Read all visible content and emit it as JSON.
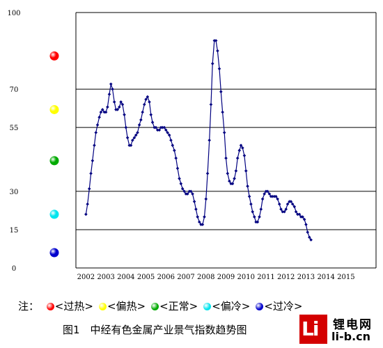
{
  "chart_data": {
    "type": "line",
    "title": "图1　中经有色金属产业景气指数趋势图",
    "xlabel": "",
    "ylabel": "",
    "ylim": [
      0,
      100
    ],
    "yticks": [
      0,
      15,
      30,
      55,
      70,
      100
    ],
    "x_tick_labels": [
      "2002",
      "2003",
      "2004",
      "2005",
      "2006",
      "2007",
      "2008",
      "2009",
      "2010",
      "2011",
      "2012",
      "2013",
      "2014",
      "2015"
    ],
    "x_range": [
      2001.5,
      2016.5
    ],
    "grid": "horizontal",
    "line_color": "#000080",
    "series": [
      {
        "values": [
          [
            2002.0,
            21
          ],
          [
            2002.08,
            25
          ],
          [
            2002.17,
            31
          ],
          [
            2002.25,
            37
          ],
          [
            2002.33,
            42
          ],
          [
            2002.42,
            48
          ],
          [
            2002.5,
            53
          ],
          [
            2002.58,
            56
          ],
          [
            2002.67,
            59
          ],
          [
            2002.75,
            61
          ],
          [
            2002.83,
            62
          ],
          [
            2002.92,
            61
          ],
          [
            2003.0,
            61
          ],
          [
            2003.08,
            63
          ],
          [
            2003.17,
            68
          ],
          [
            2003.25,
            72
          ],
          [
            2003.33,
            70
          ],
          [
            2003.42,
            65
          ],
          [
            2003.5,
            62
          ],
          [
            2003.58,
            62
          ],
          [
            2003.67,
            63
          ],
          [
            2003.75,
            65
          ],
          [
            2003.83,
            64
          ],
          [
            2003.92,
            60
          ],
          [
            2004.0,
            55
          ],
          [
            2004.08,
            51
          ],
          [
            2004.17,
            48
          ],
          [
            2004.25,
            48
          ],
          [
            2004.33,
            50
          ],
          [
            2004.42,
            51
          ],
          [
            2004.5,
            52
          ],
          [
            2004.58,
            53
          ],
          [
            2004.67,
            56
          ],
          [
            2004.75,
            58
          ],
          [
            2004.83,
            61
          ],
          [
            2004.92,
            64
          ],
          [
            2005.0,
            66
          ],
          [
            2005.08,
            67
          ],
          [
            2005.17,
            65
          ],
          [
            2005.25,
            60
          ],
          [
            2005.33,
            57
          ],
          [
            2005.42,
            55
          ],
          [
            2005.5,
            55
          ],
          [
            2005.58,
            54
          ],
          [
            2005.67,
            54
          ],
          [
            2005.75,
            55
          ],
          [
            2005.83,
            55
          ],
          [
            2005.92,
            55
          ],
          [
            2006.0,
            54
          ],
          [
            2006.08,
            53
          ],
          [
            2006.17,
            52
          ],
          [
            2006.25,
            50
          ],
          [
            2006.33,
            48
          ],
          [
            2006.42,
            46
          ],
          [
            2006.5,
            43
          ],
          [
            2006.58,
            39
          ],
          [
            2006.67,
            35
          ],
          [
            2006.75,
            33
          ],
          [
            2006.83,
            31
          ],
          [
            2006.92,
            30
          ],
          [
            2007.0,
            29
          ],
          [
            2007.08,
            29
          ],
          [
            2007.17,
            30
          ],
          [
            2007.25,
            30
          ],
          [
            2007.33,
            29
          ],
          [
            2007.42,
            26
          ],
          [
            2007.5,
            23
          ],
          [
            2007.58,
            20
          ],
          [
            2007.67,
            18
          ],
          [
            2007.75,
            17
          ],
          [
            2007.83,
            17
          ],
          [
            2007.92,
            20
          ],
          [
            2008.0,
            27
          ],
          [
            2008.08,
            37
          ],
          [
            2008.17,
            50
          ],
          [
            2008.25,
            64
          ],
          [
            2008.33,
            80
          ],
          [
            2008.42,
            89
          ],
          [
            2008.5,
            89
          ],
          [
            2008.58,
            85
          ],
          [
            2008.67,
            78
          ],
          [
            2008.75,
            69
          ],
          [
            2008.83,
            61
          ],
          [
            2008.92,
            53
          ],
          [
            2009.0,
            43
          ],
          [
            2009.08,
            37
          ],
          [
            2009.17,
            34
          ],
          [
            2009.25,
            33
          ],
          [
            2009.33,
            33
          ],
          [
            2009.42,
            35
          ],
          [
            2009.5,
            38
          ],
          [
            2009.58,
            43
          ],
          [
            2009.67,
            46
          ],
          [
            2009.75,
            48
          ],
          [
            2009.83,
            47
          ],
          [
            2009.92,
            44
          ],
          [
            2010.0,
            38
          ],
          [
            2010.08,
            32
          ],
          [
            2010.17,
            28
          ],
          [
            2010.25,
            25
          ],
          [
            2010.33,
            22
          ],
          [
            2010.42,
            20
          ],
          [
            2010.5,
            18
          ],
          [
            2010.58,
            18
          ],
          [
            2010.67,
            20
          ],
          [
            2010.75,
            23
          ],
          [
            2010.83,
            27
          ],
          [
            2010.92,
            29
          ],
          [
            2011.0,
            30
          ],
          [
            2011.08,
            30
          ],
          [
            2011.17,
            29
          ],
          [
            2011.25,
            28
          ],
          [
            2011.33,
            28
          ],
          [
            2011.42,
            28
          ],
          [
            2011.5,
            28
          ],
          [
            2011.58,
            27
          ],
          [
            2011.67,
            25
          ],
          [
            2011.75,
            23
          ],
          [
            2011.83,
            22
          ],
          [
            2011.92,
            22
          ],
          [
            2012.0,
            23
          ],
          [
            2012.08,
            25
          ],
          [
            2012.17,
            26
          ],
          [
            2012.25,
            26
          ],
          [
            2012.33,
            25
          ],
          [
            2012.42,
            24
          ],
          [
            2012.5,
            22
          ],
          [
            2012.58,
            21
          ],
          [
            2012.67,
            21
          ],
          [
            2012.75,
            20
          ],
          [
            2012.83,
            20
          ],
          [
            2012.92,
            19
          ],
          [
            2013.0,
            17
          ],
          [
            2013.08,
            14
          ],
          [
            2013.17,
            12
          ],
          [
            2013.25,
            11
          ]
        ]
      }
    ]
  },
  "y_zone_markers": [
    {
      "name": "overheated",
      "color": "#ff0000",
      "y": 83
    },
    {
      "name": "hot",
      "color": "#ffff00",
      "y": 62
    },
    {
      "name": "normal",
      "color": "#00aa00",
      "y": 42
    },
    {
      "name": "cool",
      "color": "#00e5ee",
      "y": 21
    },
    {
      "name": "cold",
      "color": "#0000cd",
      "y": 6
    }
  ],
  "legend": {
    "prefix": "注：",
    "items": [
      {
        "label": "<过热>",
        "color": "#ff0000"
      },
      {
        "label": "<偏热>",
        "color": "#ffff00"
      },
      {
        "label": "<正常>",
        "color": "#00aa00"
      },
      {
        "label": "<偏冷>",
        "color": "#00e5ee"
      },
      {
        "label": "<过冷>",
        "color": "#0000cd"
      }
    ]
  },
  "watermark": {
    "mark": "Li",
    "name_cn": "锂电网",
    "url": "li-b.cn"
  }
}
